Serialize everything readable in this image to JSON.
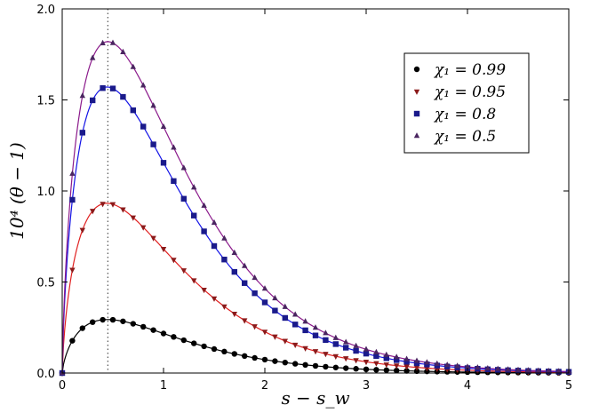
{
  "chart_data": {
    "type": "line",
    "xlabel": "s − s_w",
    "ylabel": "10⁴ (θ − 1)",
    "xlim": [
      0,
      5
    ],
    "ylim": [
      0,
      2.0
    ],
    "xticks": [
      0,
      1,
      2,
      3,
      4,
      5
    ],
    "yticks": [
      0.0,
      0.5,
      1.0,
      1.5,
      2.0
    ],
    "ytick_labels": [
      "0.0",
      "0.5",
      "1.0",
      "1.5",
      "2.0"
    ],
    "grid": false,
    "legend_position": "top-right",
    "reference_line": {
      "x": 0.45,
      "style": "dotted"
    },
    "series": [
      {
        "name": "χ₁ = 0.99",
        "marker": "circle",
        "marker_color": "#000000",
        "line_color": "#000000",
        "peak": 0.295
      },
      {
        "name": "χ₁ = 0.95",
        "marker": "triangle-down",
        "marker_color": "#8b1a1a",
        "line_color": "#e02020",
        "peak": 0.945
      },
      {
        "name": "χ₁ = 0.8",
        "marker": "square",
        "marker_color": "#1a1a8b",
        "line_color": "#1414e6",
        "peak": 1.585
      },
      {
        "name": "χ₁ = 0.5",
        "marker": "triangle-up",
        "marker_color": "#4a2560",
        "line_color": "#8b1a8b",
        "peak": 1.82
      }
    ],
    "x_sample": [
      0,
      0.1,
      0.2,
      0.45,
      1.0,
      1.5,
      2.0,
      2.5,
      3.0,
      3.5,
      4.0,
      5.0
    ],
    "shape": "y = peak · (x/0.45) · exp(1 − x/0.45) ^ ... (rise to peak at x≈0.45, decay toward 0 by x≈4)"
  }
}
